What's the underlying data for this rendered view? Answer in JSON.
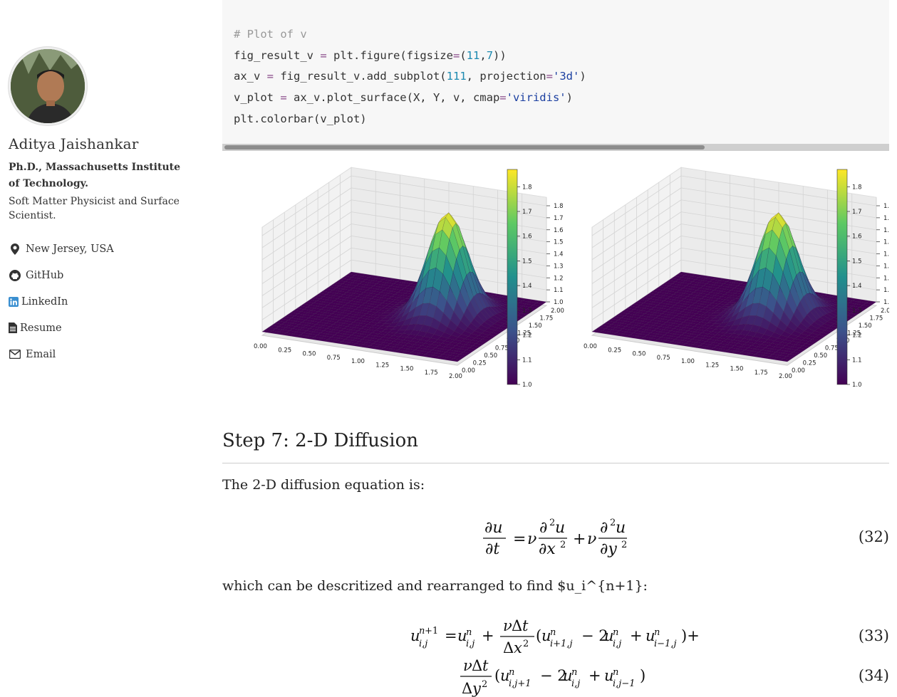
{
  "author": {
    "name": "Aditya Jaishankar",
    "degree": "Ph.D., Massachusetts Institute of Technology.",
    "bio": "Soft Matter Physicist and Surface Scientist."
  },
  "links": [
    {
      "icon": "map-marker-icon",
      "label": "New Jersey, USA"
    },
    {
      "icon": "github-icon",
      "label": "GitHub"
    },
    {
      "icon": "linkedin-icon",
      "label": "LinkedIn"
    },
    {
      "icon": "file-icon",
      "label": "Resume"
    },
    {
      "icon": "envelope-icon",
      "label": "Email"
    }
  ],
  "code": {
    "line1": "# Plot of v",
    "line2_a": "fig_result_v ",
    "line2_op": "=",
    "line2_b": " plt.figure(figsize",
    "line2_op2": "=",
    "line2_c": "(",
    "line2_n1": "11",
    "line2_d": ",",
    "line2_n2": "7",
    "line2_e": "))",
    "line3_a": "ax_v ",
    "line3_op": "=",
    "line3_b": " fig_result_v.add_subplot(",
    "line3_n": "111",
    "line3_c": ", projection",
    "line3_op2": "=",
    "line3_s": "'3d'",
    "line3_d": ")",
    "line4_a": "v_plot ",
    "line4_op": "=",
    "line4_b": " ax_v.plot_surface(X, Y, v, cmap",
    "line4_op2": "=",
    "line4_s": "'viridis'",
    "line4_c": ")",
    "line5": "plt.colorbar(v_plot)"
  },
  "plot": {
    "x_ticks": [
      "0.00",
      "0.25",
      "0.50",
      "0.75",
      "1.00",
      "1.25",
      "1.50",
      "1.75",
      "2.00"
    ],
    "y_ticks": [
      "0.00",
      "0.25",
      "0.50",
      "0.75",
      "1.00",
      "1.25",
      "1.50",
      "1.75",
      "2.00"
    ],
    "z_ticks": [
      "1.0",
      "1.1",
      "1.2",
      "1.3",
      "1.4",
      "1.5",
      "1.6",
      "1.7",
      "1.8"
    ],
    "colorbar_ticks": [
      "1.0",
      "1.1",
      "1.2",
      "1.3",
      "1.4",
      "1.5",
      "1.6",
      "1.7",
      "1.8"
    ],
    "colormap": [
      "#440154",
      "#3b528b",
      "#21908d",
      "#5dc963",
      "#fde725"
    ]
  },
  "section": {
    "heading": "Step 7: 2-D Diffusion",
    "intro": "The 2-D diffusion equation is:",
    "eq32_num": "(32)",
    "middle": "which can be descritized and rearranged to find $u_i^{n+1}:",
    "eq33_num": "(33)",
    "eq34_num": "(34)"
  }
}
